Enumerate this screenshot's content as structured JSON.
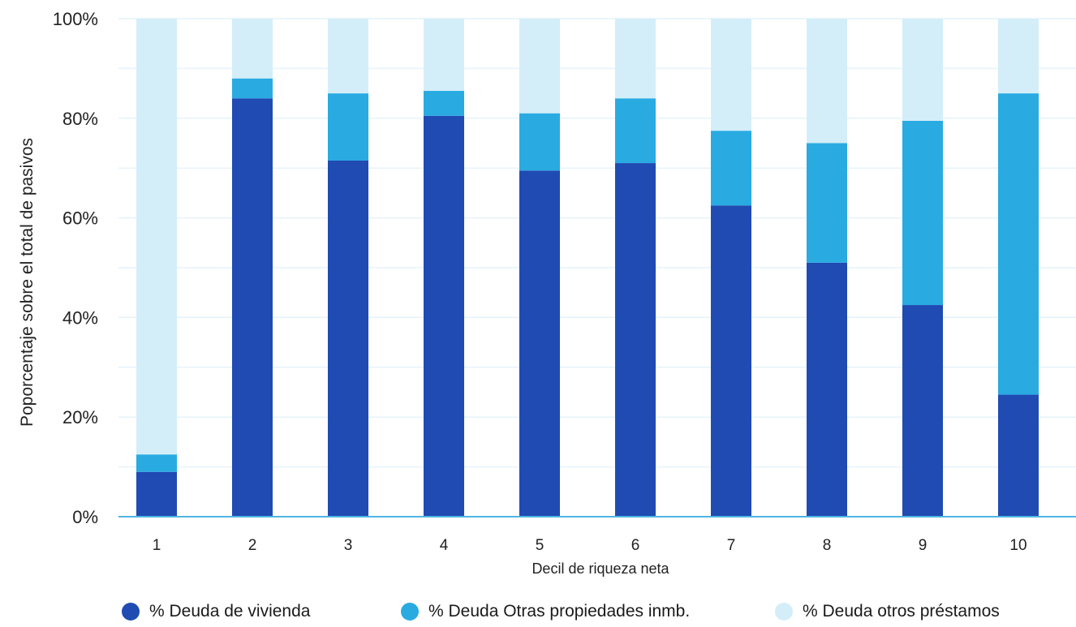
{
  "chart_data": {
    "type": "bar",
    "stacked": true,
    "categories": [
      "1",
      "2",
      "3",
      "4",
      "5",
      "6",
      "7",
      "8",
      "9",
      "10"
    ],
    "series": [
      {
        "name": "% Deuda de vivienda",
        "color": "#1f4bb3",
        "values": [
          9,
          84,
          71.5,
          80.5,
          69.5,
          71,
          62.5,
          51,
          42.5,
          24.5
        ]
      },
      {
        "name": "% Deuda Otras propiedades inmb.",
        "color": "#29abe2",
        "values": [
          3.5,
          4,
          13.5,
          5,
          11.5,
          13,
          15,
          24,
          37,
          60.5
        ]
      },
      {
        "name": "% Deuda otros préstamos",
        "color": "#d4eef9",
        "values": [
          87.5,
          12,
          15,
          14.5,
          19,
          16,
          22.5,
          25,
          20.5,
          15
        ]
      }
    ],
    "title": "",
    "xlabel": "Decil de riqueza neta",
    "ylabel": "Poporcentaje sobre el total de pasivos",
    "ylim": [
      0,
      100
    ],
    "yticks": [
      "0%",
      "20%",
      "40%",
      "60%",
      "80%",
      "100%"
    ],
    "grid": true,
    "legend_position": "bottom"
  }
}
